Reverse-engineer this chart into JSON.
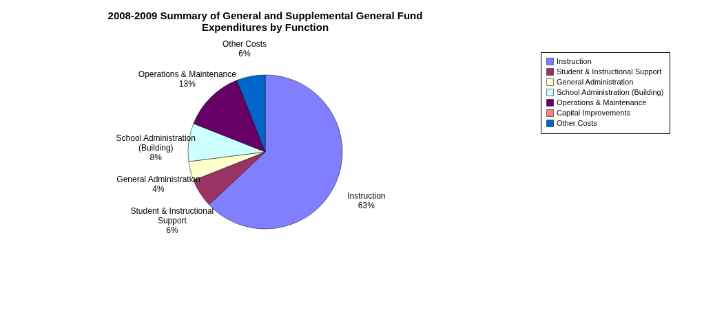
{
  "chart_data": {
    "type": "pie",
    "title": [
      "2008-2009 Summary of General and Supplemental General Fund",
      "Expenditures by Function"
    ],
    "categories": [
      "Instruction",
      "Student & Instructional Support",
      "General Administration",
      "School Administration (Building)",
      "Operations & Maintenance",
      "Capital Improvements",
      "Other Costs"
    ],
    "values": [
      63,
      6,
      4,
      8,
      13,
      0,
      6
    ],
    "value_labels": [
      "63%",
      "6%",
      "4%",
      "8%",
      "13%",
      null,
      "6%"
    ],
    "colors": [
      "#8080ff",
      "#993366",
      "#ffffcc",
      "#ccffff",
      "#660066",
      "#ff8080",
      "#0066cc"
    ],
    "legend": "right"
  }
}
